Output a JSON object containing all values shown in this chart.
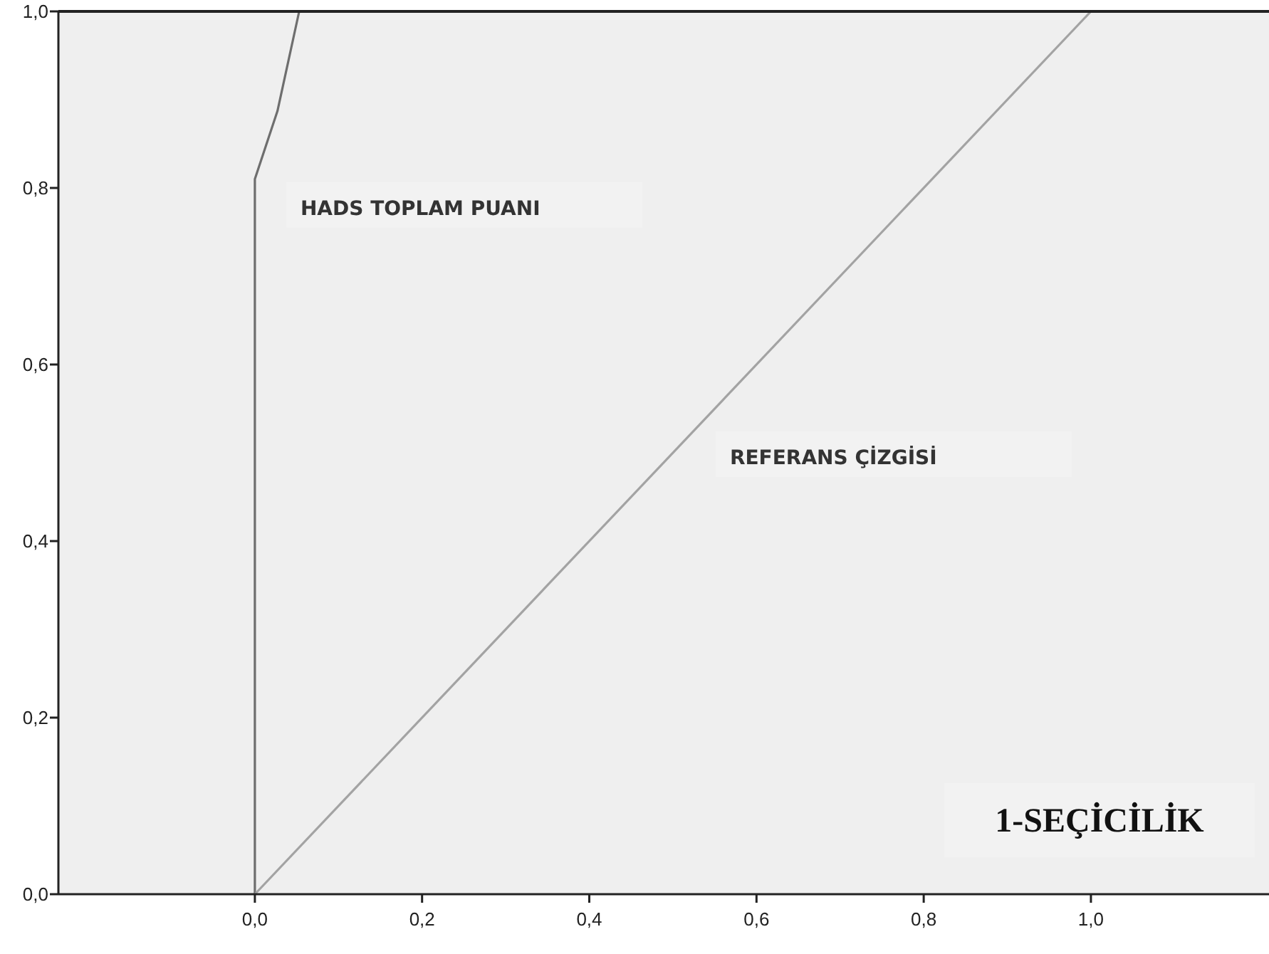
{
  "chart_data": {
    "type": "line",
    "xlabel": "1-SEÇİCİLİK",
    "xlim": [
      -0.235,
      1.213
    ],
    "ylim": [
      0,
      1
    ],
    "xticks": [
      {
        "value": 0,
        "label": "0,0"
      },
      {
        "value": 0.2,
        "label": "0,2"
      },
      {
        "value": 0.4,
        "label": "0,4"
      },
      {
        "value": 0.6,
        "label": "0,6"
      },
      {
        "value": 0.8,
        "label": "0,8"
      },
      {
        "value": 1,
        "label": "1,0"
      }
    ],
    "yticks": [
      {
        "value": 0,
        "label": "0,0"
      },
      {
        "value": 0.2,
        "label": "0,2"
      },
      {
        "value": 0.4,
        "label": "0,4"
      },
      {
        "value": 0.6,
        "label": "0,6"
      },
      {
        "value": 0.8,
        "label": "0,8"
      },
      {
        "value": 1,
        "label": "1,0"
      }
    ],
    "series": [
      {
        "name": "HADS TOPLAM PUANI",
        "color": "#6e6e6e",
        "x": [
          0,
          0,
          0.027,
          0.053,
          1
        ],
        "values": [
          0,
          0.81,
          0.887,
          1,
          1
        ]
      },
      {
        "name": "REFERANS ÇİZGİSİ",
        "color": "#a3a3a3",
        "x": [
          0,
          1
        ],
        "values": [
          0,
          1
        ]
      }
    ],
    "grid": false,
    "marker": "none",
    "line_style": "solid"
  }
}
